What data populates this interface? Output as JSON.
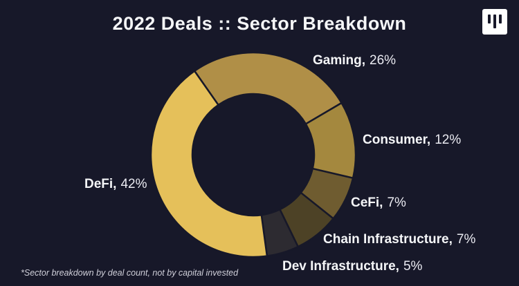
{
  "page": {
    "background": "#171829",
    "text_color": "#f5f6f8",
    "footnote_color": "#cfcfd9"
  },
  "logo": {
    "description": "white rounded square with three dark vertical bars, middle bar taller",
    "box_color": "#ffffff",
    "bar_color": "#171829"
  },
  "chart_data": {
    "type": "pie",
    "subtype": "donut",
    "title": "2022 Deals :: Sector Breakdown",
    "unit": "%",
    "categories": [
      "Gaming",
      "Consumer",
      "CeFi",
      "Chain Infrastructure",
      "Dev Infrastructure",
      "DeFi"
    ],
    "values": [
      26,
      12,
      7,
      7,
      5,
      42
    ],
    "segments": [
      {
        "id": "gaming",
        "label": "Gaming",
        "label_display": "Gaming,",
        "value": 26,
        "value_display": "26%",
        "color": "#b08f47"
      },
      {
        "id": "consumer",
        "label": "Consumer",
        "label_display": "Consumer,",
        "value": 12,
        "value_display": "12%",
        "color": "#a4883e"
      },
      {
        "id": "cefi",
        "label": "CeFi",
        "label_display": "CeFi,",
        "value": 7,
        "value_display": "7%",
        "color": "#6f5c30"
      },
      {
        "id": "chain-infrastructure",
        "label": "Chain Infrastructure",
        "label_display": "Chain Infrastructure,",
        "value": 7,
        "value_display": "7%",
        "color": "#4d4226"
      },
      {
        "id": "dev-infrastructure",
        "label": "Dev Infrastructure",
        "label_display": "Dev Infrastructure,",
        "value": 5,
        "value_display": "5%",
        "color": "#2d2b31"
      },
      {
        "id": "defi",
        "label": "DeFi",
        "label_display": "DeFi,",
        "value": 42,
        "value_display": "42%",
        "color": "#e5c05a"
      }
    ],
    "layout": {
      "start_angle_deg": -35,
      "clockwise": true,
      "legend": "none",
      "labels": "outside",
      "donut_hole": true
    },
    "footnote": "*Sector breakdown by deal count, not by capital invested"
  }
}
